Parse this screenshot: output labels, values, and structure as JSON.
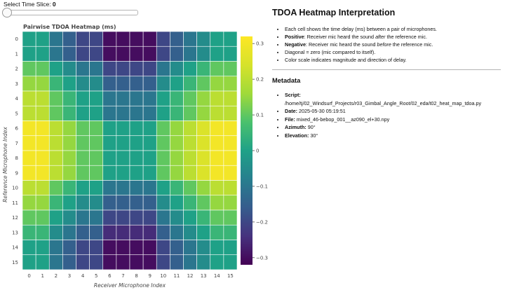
{
  "slider": {
    "label": "Select Time Slice: ",
    "value": "0"
  },
  "chart_data": {
    "type": "heatmap",
    "title": "Pairwise TDOA Heatmap (ms)",
    "xlabel": "Receiver Microphone Index",
    "ylabel": "Reference Microphone Index",
    "x": [
      "0",
      "1",
      "2",
      "3",
      "4",
      "5",
      "6",
      "7",
      "8",
      "9",
      "10",
      "11",
      "12",
      "13",
      "14",
      "15"
    ],
    "y": [
      "0",
      "1",
      "2",
      "3",
      "4",
      "5",
      "6",
      "7",
      "8",
      "9",
      "10",
      "11",
      "12",
      "13",
      "14",
      "15"
    ],
    "values": [
      [
        0,
        0,
        -0.1,
        -0.15,
        -0.2,
        -0.2,
        -0.3,
        -0.3,
        -0.3,
        -0.3,
        -0.2,
        -0.15,
        -0.1,
        -0.05,
        0,
        0
      ],
      [
        0,
        0,
        -0.1,
        -0.15,
        -0.2,
        -0.2,
        -0.3,
        -0.3,
        -0.3,
        -0.3,
        -0.2,
        -0.15,
        -0.1,
        -0.05,
        0,
        0
      ],
      [
        0.1,
        0.1,
        0,
        -0.05,
        -0.1,
        -0.1,
        -0.2,
        -0.2,
        -0.2,
        -0.2,
        -0.1,
        -0.05,
        0,
        0.05,
        0.1,
        0.1
      ],
      [
        0.15,
        0.15,
        0.05,
        0,
        -0.05,
        -0.05,
        -0.15,
        -0.15,
        -0.15,
        -0.15,
        -0.05,
        0,
        0.05,
        0.1,
        0.15,
        0.15
      ],
      [
        0.2,
        0.2,
        0.1,
        0.05,
        0,
        0,
        -0.1,
        -0.1,
        -0.1,
        -0.1,
        0,
        0.05,
        0.1,
        0.15,
        0.2,
        0.2
      ],
      [
        0.2,
        0.2,
        0.1,
        0.05,
        0,
        0,
        -0.1,
        -0.1,
        -0.1,
        -0.1,
        0,
        0.05,
        0.1,
        0.15,
        0.2,
        0.2
      ],
      [
        0.3,
        0.3,
        0.2,
        0.15,
        0.1,
        0.1,
        0,
        0,
        0,
        0,
        0.1,
        0.15,
        0.2,
        0.25,
        0.3,
        0.3
      ],
      [
        0.3,
        0.3,
        0.2,
        0.15,
        0.1,
        0.1,
        0,
        0,
        0,
        0,
        0.1,
        0.15,
        0.2,
        0.25,
        0.3,
        0.3
      ],
      [
        0.3,
        0.3,
        0.2,
        0.15,
        0.1,
        0.1,
        0,
        0,
        0,
        0,
        0.1,
        0.15,
        0.2,
        0.25,
        0.3,
        0.3
      ],
      [
        0.3,
        0.3,
        0.2,
        0.15,
        0.1,
        0.1,
        0,
        0,
        0,
        0,
        0.1,
        0.15,
        0.2,
        0.25,
        0.3,
        0.3
      ],
      [
        0.2,
        0.2,
        0.1,
        0.05,
        0,
        0,
        -0.1,
        -0.1,
        -0.1,
        -0.1,
        0,
        0.05,
        0.1,
        0.15,
        0.2,
        0.2
      ],
      [
        0.15,
        0.15,
        0.05,
        0,
        -0.05,
        -0.05,
        -0.15,
        -0.15,
        -0.15,
        -0.15,
        -0.05,
        0,
        0.05,
        0.1,
        0.15,
        0.15
      ],
      [
        0.1,
        0.1,
        0,
        -0.05,
        -0.1,
        -0.1,
        -0.2,
        -0.2,
        -0.2,
        -0.2,
        -0.1,
        -0.05,
        0,
        0.05,
        0.1,
        0.1
      ],
      [
        0.05,
        0.05,
        -0.05,
        -0.1,
        -0.15,
        -0.15,
        -0.25,
        -0.25,
        -0.25,
        -0.25,
        -0.15,
        -0.1,
        -0.05,
        0,
        0.05,
        0.05
      ],
      [
        0,
        0,
        -0.1,
        -0.15,
        -0.2,
        -0.2,
        -0.3,
        -0.3,
        -0.3,
        -0.3,
        -0.2,
        -0.15,
        -0.1,
        -0.05,
        0,
        0
      ],
      [
        0,
        0,
        -0.1,
        -0.15,
        -0.2,
        -0.2,
        -0.3,
        -0.3,
        -0.3,
        -0.3,
        -0.2,
        -0.15,
        -0.1,
        -0.05,
        0,
        0
      ]
    ],
    "colorscale": "viridis",
    "zlim": [
      -0.32,
      0.32
    ],
    "colorbar_ticks": [
      {
        "value": 0.3,
        "label": "0.3"
      },
      {
        "value": 0.2,
        "label": "0.2"
      },
      {
        "value": 0.1,
        "label": "0.1"
      },
      {
        "value": 0,
        "label": "0"
      },
      {
        "value": -0.1,
        "label": "−0.1"
      },
      {
        "value": -0.2,
        "label": "−0.2"
      },
      {
        "value": -0.3,
        "label": "−0.3"
      }
    ]
  },
  "panel": {
    "title": "TDOA Heatmap Interpretation",
    "bullets": {
      "b1": "Each cell shows the time delay (ms) between a pair of microphones.",
      "b2_bold": "Positive",
      "b2_a": ": Receiver mic heard the sound ",
      "b2_em": "after",
      "b2_b": " the reference mic.",
      "b3_bold": "Negative",
      "b3_a": ": Receiver mic heard the sound ",
      "b3_em": "before",
      "b3_b": " the reference mic.",
      "b4": "Diagonal = zero (mic compared to itself).",
      "b5": "Color scale indicates magnitude and direction of delay."
    },
    "metadata_title": "Metadata",
    "metadata": {
      "script_label": "Script:",
      "script_value": "/home/tj/02_Windsurf_Projects/r03_Gimbal_Angle_Root/02_eda/t02_heat_map_tdoa.py",
      "date_label": "Date:",
      "date_value": " 2025-05-30 05:19:51",
      "file_label": "File:",
      "file_value": " mixed_46-bebop_001__az090_el+30.npy",
      "azimuth_label": "Azimuth:",
      "azimuth_value": " 90°",
      "elevation_label": "Elevation:",
      "elevation_value": " 30°"
    }
  }
}
